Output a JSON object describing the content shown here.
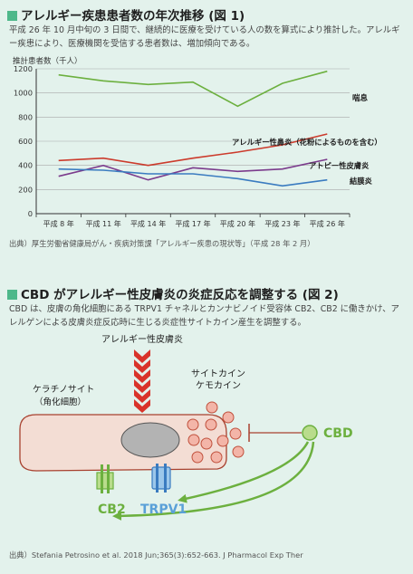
{
  "fig1": {
    "title": "アレルギー疾患患者数の年次推移 (図 1)",
    "description": "平成 26 年 10 月中旬の 3 日間で、継続的に医療を受けている人の数を算式により推計した。アレルギー疾患により、医療機関を受信する患者数は、増加傾向である。",
    "source": "出典）厚生労働省健康局がん・疾病対策課「アレルギー疾患の現状等」（平成 28 年 2 月）"
  },
  "chart_data": {
    "type": "line",
    "ylabel": "推計患者数（千人）",
    "categories": [
      "平成 8 年",
      "平成 11 年",
      "平成 14 年",
      "平成 17 年",
      "平成 20 年",
      "平成 23 年",
      "平成 26 年"
    ],
    "yticks": [
      0,
      200,
      400,
      600,
      800,
      1000,
      1200
    ],
    "ylim": [
      0,
      1200
    ],
    "grid": true,
    "series": [
      {
        "name": "喘息",
        "color": "#6cb03f",
        "values": [
          1150,
          1100,
          1070,
          1090,
          890,
          1080,
          1180
        ]
      },
      {
        "name": "アレルギー性鼻炎（花粉によるものを含む）",
        "color": "#cc3b2c",
        "values": [
          440,
          460,
          400,
          460,
          510,
          570,
          660
        ]
      },
      {
        "name": "アトピー性皮膚炎",
        "color": "#7b3b8c",
        "values": [
          310,
          400,
          280,
          380,
          350,
          370,
          450
        ]
      },
      {
        "name": "結膜炎",
        "color": "#3a7bc0",
        "values": [
          370,
          360,
          330,
          330,
          290,
          230,
          280
        ]
      }
    ]
  },
  "fig2": {
    "title": "CBD がアレルギー性皮膚炎の炎症反応を調整する (図 2)",
    "description": "CBD は、皮膚の角化細胞にある TRPV1 チャネルとカンナビノイド受容体 CB2、CB2 に働きかけ、アレルゲンによる皮膚炎症反応時に生じる炎症性サイトカイン産生を調整する。",
    "allergy_label": "アレルギー性皮膚炎",
    "keratinocyte_label": "ケラチノサイト",
    "keratinocyte_sub": "（角化細胞）",
    "cytokine_label": "サイトカイン",
    "chemokine_label": "ケモカイン",
    "cbd_label": "CBD",
    "cb2_label": "CB2",
    "trpv1_label": "TRPV1",
    "source": "出典）Stefania Petrosino et al. 2018 Jun;365(3):652-663. J Pharmacol Exp Ther",
    "colors": {
      "cbd": "#7fbf3f",
      "cb2": "#6cb03f",
      "trpv1": "#5aa0d8",
      "arrow_red": "#d9332a",
      "cell": "#f3ddd4",
      "cell_border": "#a8412f"
    }
  }
}
